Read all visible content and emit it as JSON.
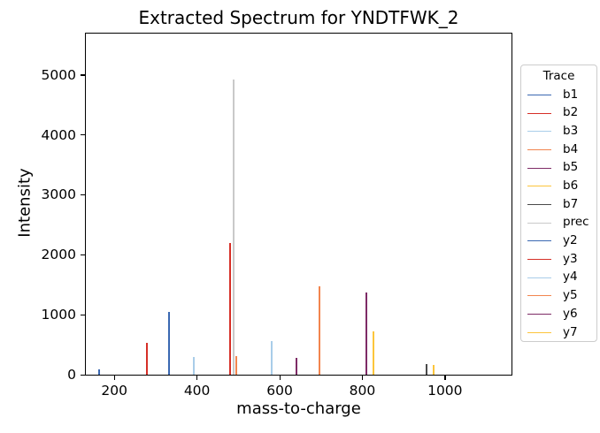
{
  "chart_data": {
    "type": "bar",
    "bar_style": "stem/vlines (mass spectrum)",
    "title": "Extracted Spectrum for YNDTFWK_2",
    "xlabel": "mass-to-charge",
    "ylabel": "Intensity",
    "xlim": [
      131,
      1161
    ],
    "ylim": [
      0,
      5690
    ],
    "xticks": [
      200,
      400,
      600,
      800,
      1000
    ],
    "yticks": [
      0,
      1000,
      2000,
      3000,
      4000,
      5000
    ],
    "grid": false,
    "legend_title": "Trace",
    "legend_position": "outside-right",
    "series": [
      {
        "name": "b1",
        "mz": 164.1,
        "intensity": 90,
        "color": "#3A68B2"
      },
      {
        "name": "b2",
        "mz": 278.1,
        "intensity": 535,
        "color": "#D62F27"
      },
      {
        "name": "b3",
        "mz": 393.1,
        "intensity": 290,
        "color": "#A9CDE9"
      },
      {
        "name": "b4",
        "mz": 494.2,
        "intensity": 315,
        "color": "#F2854E"
      },
      {
        "name": "b5",
        "mz": 641.3,
        "intensity": 275,
        "color": "#7E2B66"
      },
      {
        "name": "b6",
        "mz": 827.3,
        "intensity": 725,
        "color": "#FCC53B"
      },
      {
        "name": "b7",
        "mz": 955.4,
        "intensity": 170,
        "color": "#4A4A4A"
      },
      {
        "name": "prec",
        "mz": 487.7,
        "intensity": 4925,
        "color": "#C9C9C9"
      },
      {
        "name": "y2",
        "mz": 333.2,
        "intensity": 1045,
        "color": "#3A68B2"
      },
      {
        "name": "y3",
        "mz": 480.3,
        "intensity": 2190,
        "color": "#D62F27"
      },
      {
        "name": "y4",
        "mz": 581.3,
        "intensity": 555,
        "color": "#A9CDE9"
      },
      {
        "name": "y5",
        "mz": 696.3,
        "intensity": 1480,
        "color": "#F2854E"
      },
      {
        "name": "y6",
        "mz": 810.4,
        "intensity": 1370,
        "color": "#7E2B66"
      },
      {
        "name": "y7",
        "mz": 973.4,
        "intensity": 160,
        "color": "#FCC53B"
      }
    ]
  }
}
